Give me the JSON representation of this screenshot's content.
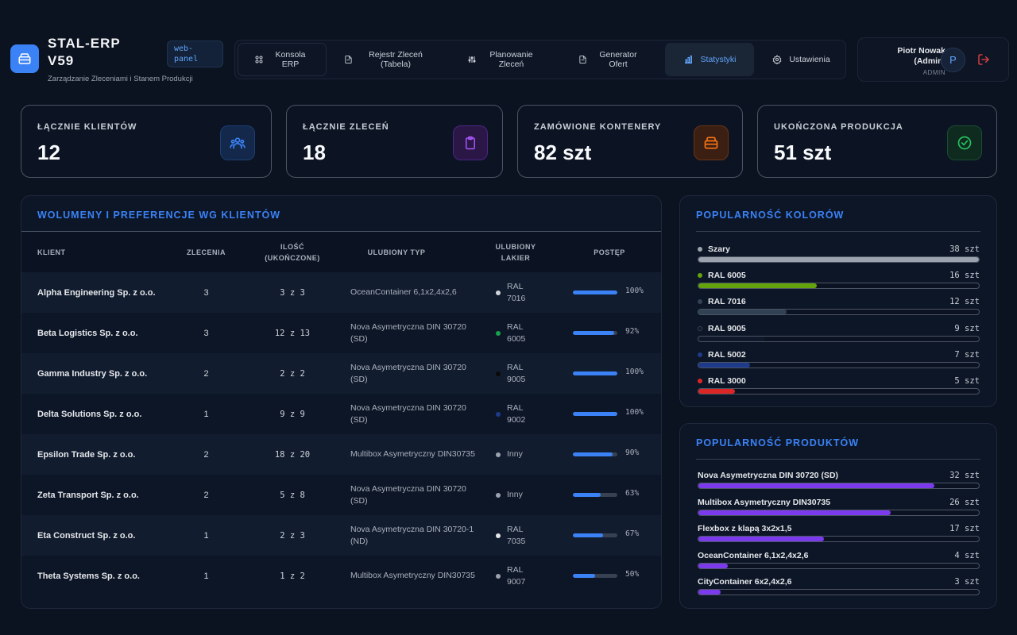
{
  "app": {
    "title": "STAL-ERP V59",
    "subtitle": "Zarządzanie Zleceniami i Stanem Produkcji",
    "badge": "web-panel"
  },
  "nav": [
    {
      "label": "Konsola ERP",
      "icon": "grid-icon"
    },
    {
      "label": "Rejestr Zleceń (Tabela)",
      "icon": "document-icon"
    },
    {
      "label": "Planowanie Zleceń",
      "icon": "sliders-icon"
    },
    {
      "label": "Generator Ofert",
      "icon": "document-icon"
    },
    {
      "label": "Statystyki",
      "icon": "bar-chart-icon",
      "active": true
    },
    {
      "label": "Ustawienia",
      "icon": "gear-icon"
    }
  ],
  "user": {
    "name": "Piotr Nowak (Admin)",
    "role": "ADMIN",
    "initial": "P"
  },
  "stats": [
    {
      "label": "ŁĄCZNIE KLIENTÓW",
      "value": "12",
      "icon": "users-icon",
      "color": "#3b82f6"
    },
    {
      "label": "ŁĄCZNIE ZLECEŃ",
      "value": "18",
      "icon": "clipboard-icon",
      "color": "#a855f7"
    },
    {
      "label": "ZAMÓWIONE KONTENERY",
      "value": "82 szt",
      "icon": "container-icon",
      "color": "#f97316"
    },
    {
      "label": "UKOŃCZONA PRODUKCJA",
      "value": "51 szt",
      "icon": "check-circle-icon",
      "color": "#22c55e"
    }
  ],
  "clients_table": {
    "title": "WOLUMENY I PREFERENCJE WG KLIENTÓW",
    "headers": {
      "client": "KLIENT",
      "orders": "ZLECENIA",
      "qty": "ILOŚĆ (UKOŃCZONE)",
      "type": "ULUBIONY TYP",
      "color": "ULUBIONY LAKIER",
      "progress": "POSTĘP"
    },
    "rows": [
      {
        "client": "Alpha Engineering Sp. z o.o.",
        "orders": "3",
        "qty": "3 z 3",
        "type": "OceanContainer 6,1x2,4x2,6",
        "color": "RAL 7016",
        "dot": "#d1d5db",
        "progress": 1.0,
        "pct": "100%"
      },
      {
        "client": "Beta Logistics Sp. z o.o.",
        "orders": "3",
        "qty": "12 z 13",
        "type": "Nova Asymetryczna DIN 30720 (SD)",
        "color": "RAL 6005",
        "dot": "#16a34a",
        "progress": 0.92,
        "pct": "92%"
      },
      {
        "client": "Gamma Industry Sp. z o.o.",
        "orders": "2",
        "qty": "2 z 2",
        "type": "Nova Asymetryczna DIN 30720 (SD)",
        "color": "RAL 9005",
        "dot": "#0a0a0a",
        "progress": 1.0,
        "pct": "100%"
      },
      {
        "client": "Delta Solutions Sp. z o.o.",
        "orders": "1",
        "qty": "9 z 9",
        "type": "Nova Asymetryczna DIN 30720 (SD)",
        "color": "RAL 9002",
        "dot": "#1e3a8a",
        "progress": 1.0,
        "pct": "100%"
      },
      {
        "client": "Epsilon Trade Sp. z o.o.",
        "orders": "2",
        "qty": "18 z 20",
        "type": "Multibox Asymetryczny DIN30735",
        "color": "Inny",
        "dot": "#9ca3af",
        "progress": 0.9,
        "pct": "90%"
      },
      {
        "client": "Zeta Transport Sp. z o.o.",
        "orders": "2",
        "qty": "5 z 8",
        "type": "Nova Asymetryczna DIN 30720 (SD)",
        "color": "Inny",
        "dot": "#9ca3af",
        "progress": 0.63,
        "pct": "63%"
      },
      {
        "client": "Eta Construct Sp. z o.o.",
        "orders": "1",
        "qty": "2 z 3",
        "type": "Nova Asymetryczna DIN 30720-1 (ND)",
        "color": "RAL 7035",
        "dot": "#e5e7eb",
        "progress": 0.67,
        "pct": "67%"
      },
      {
        "client": "Theta Systems Sp. z o.o.",
        "orders": "1",
        "qty": "1 z 2",
        "type": "Multibox Asymetryczny DIN30735",
        "color": "RAL 9007",
        "dot": "#9ca3af",
        "progress": 0.5,
        "pct": "50%"
      }
    ]
  },
  "colors_panel": {
    "title": "POPULARNOŚĆ KOLORÓW",
    "max": 38,
    "items": [
      {
        "name": "Szary",
        "count": 38,
        "label": "38 szt",
        "color": "#9ca3af"
      },
      {
        "name": "RAL 6005",
        "count": 16,
        "label": "16 szt",
        "color": "#65a30d"
      },
      {
        "name": "RAL 7016",
        "count": 12,
        "label": "12 szt",
        "color": "#334155"
      },
      {
        "name": "RAL 9005",
        "count": 9,
        "label": "9 szt",
        "color": "#0f172a"
      },
      {
        "name": "RAL 5002",
        "count": 7,
        "label": "7 szt",
        "color": "#1e3a8a"
      },
      {
        "name": "RAL 3000",
        "count": 5,
        "label": "5 szt",
        "color": "#dc2626"
      }
    ]
  },
  "products_panel": {
    "title": "POPULARNOŚĆ PRODUKTÓW",
    "max": 38,
    "items": [
      {
        "name": "Nova Asymetryczna DIN 30720 (SD)",
        "count": 32,
        "label": "32 szt"
      },
      {
        "name": "Multibox Asymetryczny DIN30735",
        "count": 26,
        "label": "26 szt"
      },
      {
        "name": "Flexbox z klapą 3x2x1,5",
        "count": 17,
        "label": "17 szt"
      },
      {
        "name": "OceanContainer 6,1x2,4x2,6",
        "count": 4,
        "label": "4 szt"
      },
      {
        "name": "CityContainer 6x2,4x2,6",
        "count": 3,
        "label": "3 szt"
      }
    ],
    "color": "#7c3aed"
  }
}
